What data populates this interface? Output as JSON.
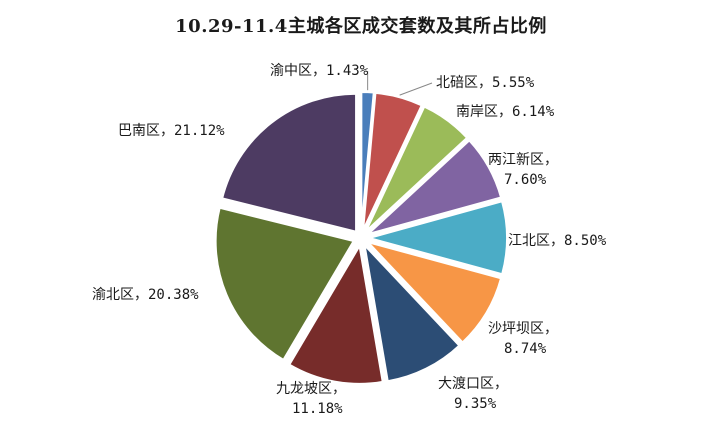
{
  "chart_data": {
    "type": "pie",
    "title": "10.29-11.4主城各区成交套数及其所占比例",
    "slices": [
      {
        "name": "渝中区",
        "value": 1.43,
        "label_lines": [
          "渝中区，1.43%"
        ],
        "color": "#4a7ebb"
      },
      {
        "name": "北碚区",
        "value": 5.55,
        "label_lines": [
          "北碚区，5.55%"
        ],
        "color": "#c0504d"
      },
      {
        "name": "南岸区",
        "value": 6.14,
        "label_lines": [
          "南岸区，6.14%"
        ],
        "color": "#9bbb59"
      },
      {
        "name": "两江新区",
        "value": 7.6,
        "label_lines": [
          "两江新区，",
          "7.60%"
        ],
        "color": "#8064a2"
      },
      {
        "name": "江北区",
        "value": 8.5,
        "label_lines": [
          "江北区，8.50%"
        ],
        "color": "#4bacc6"
      },
      {
        "name": "沙坪坝区",
        "value": 8.74,
        "label_lines": [
          "沙坪坝区，",
          "8.74%"
        ],
        "color": "#f79646"
      },
      {
        "name": "大渡口区",
        "value": 9.35,
        "label_lines": [
          "大渡口区，",
          "9.35%"
        ],
        "color": "#2c4d75"
      },
      {
        "name": "九龙坡区",
        "value": 11.18,
        "label_lines": [
          "九龙坡区，",
          "11.18%"
        ],
        "color": "#772c2a"
      },
      {
        "name": "渝北区",
        "value": 20.38,
        "label_lines": [
          "渝北区，20.38%"
        ],
        "color": "#5f7530"
      },
      {
        "name": "巴南区",
        "value": 21.12,
        "label_lines": [
          "巴南区，21.12%"
        ],
        "color": "#4d3b62"
      }
    ]
  }
}
